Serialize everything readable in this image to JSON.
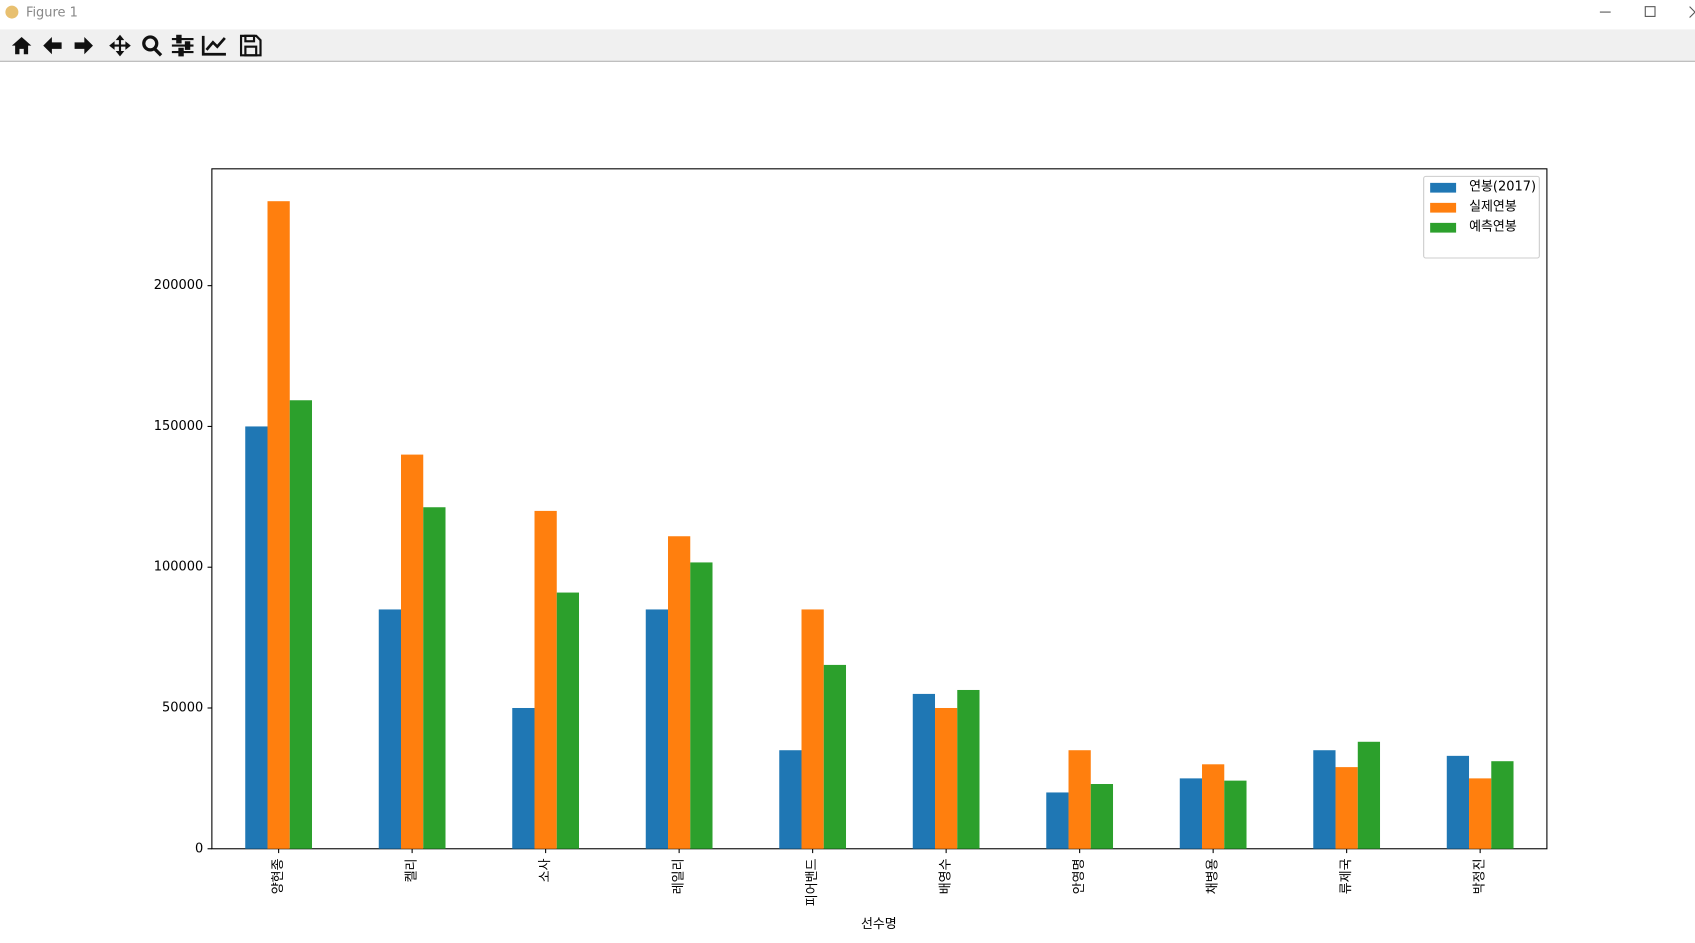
{
  "window_title": "Figure 1",
  "chart_data": {
    "type": "bar",
    "xlabel": "선수명",
    "categories": [
      "양현종",
      "켈리",
      "소사",
      "레일리",
      "피어밴드",
      "배영수",
      "안영명",
      "채병용",
      "류제국",
      "박정진"
    ],
    "series": [
      {
        "name": "연봉(2017)",
        "color": "#1f77b4",
        "values": [
          150000,
          85000,
          50000,
          85000,
          35000,
          55000,
          20000,
          25000,
          35000,
          33000
        ]
      },
      {
        "name": "실제연봉",
        "color": "#ff7f0e",
        "values": [
          230000,
          140000,
          120000,
          111000,
          85000,
          50000,
          35000,
          30000,
          29000,
          25000
        ]
      },
      {
        "name": "예측연봉",
        "color": "#2ca02c",
        "values": [
          159300,
          121300,
          91000,
          101700,
          65300,
          56400,
          23000,
          24200,
          38000,
          31100
        ]
      }
    ],
    "ylim": [
      0,
      241500
    ],
    "yticks": [
      0,
      50000,
      100000,
      150000,
      200000
    ],
    "legend": "upper right"
  }
}
